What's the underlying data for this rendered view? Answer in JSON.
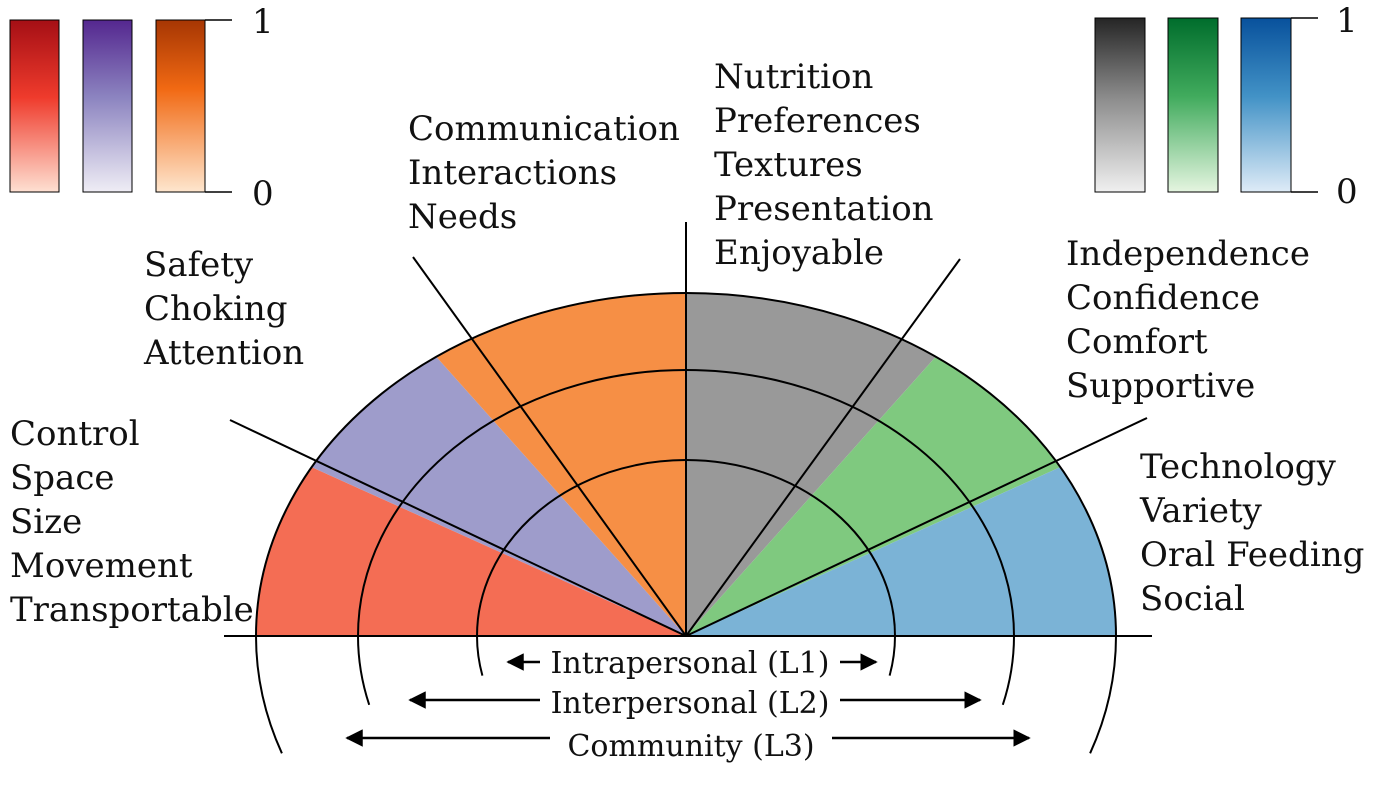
{
  "colorbars_left": {
    "bars": [
      {
        "name": "red",
        "top_color": "#a50f15",
        "mid_color": "#ef3b2c",
        "bottom_color": "#fee0d2"
      },
      {
        "name": "purple",
        "top_color": "#54278f",
        "mid_color": "#8c84c0",
        "bottom_color": "#efedf5"
      },
      {
        "name": "orange",
        "top_color": "#a63603",
        "mid_color": "#f16913",
        "bottom_color": "#fee6ce"
      }
    ],
    "max_label": "1",
    "min_label": "0"
  },
  "colorbars_right": {
    "bars": [
      {
        "name": "gray",
        "top_color": "#252525",
        "mid_color": "#8a8a8a",
        "bottom_color": "#f0f0f0"
      },
      {
        "name": "green",
        "top_color": "#006d2c",
        "mid_color": "#41ab5d",
        "bottom_color": "#e5f5e0"
      },
      {
        "name": "blue",
        "top_color": "#08519c",
        "mid_color": "#4292c6",
        "bottom_color": "#deebf7"
      }
    ],
    "max_label": "1",
    "min_label": "0"
  },
  "sectors": [
    {
      "color": "#f46d54",
      "lines": [
        "Control",
        "Space",
        "Size",
        "Movement",
        "Transportable"
      ]
    },
    {
      "color": "#9e9ccb",
      "lines": [
        "Safety",
        "Choking",
        "Attention"
      ]
    },
    {
      "color": "#f68f45",
      "lines": [
        "Communication",
        "Interactions",
        "Needs"
      ]
    },
    {
      "color": "#999999",
      "lines": [
        "Nutrition",
        "Preferences",
        "Textures",
        "Presentation",
        "Enjoyable"
      ]
    },
    {
      "color": "#7fc97f",
      "lines": [
        "Independence",
        "Confidence",
        "Comfort",
        "Supportive"
      ]
    },
    {
      "color": "#7bb3d6",
      "lines": [
        "Technology",
        "Variety",
        "Oral Feeding",
        "Social"
      ]
    }
  ],
  "levels": [
    {
      "label": "Intrapersonal (L1)"
    },
    {
      "label": "Interpersonal (L2)"
    },
    {
      "label": "Community (L3)"
    }
  ]
}
